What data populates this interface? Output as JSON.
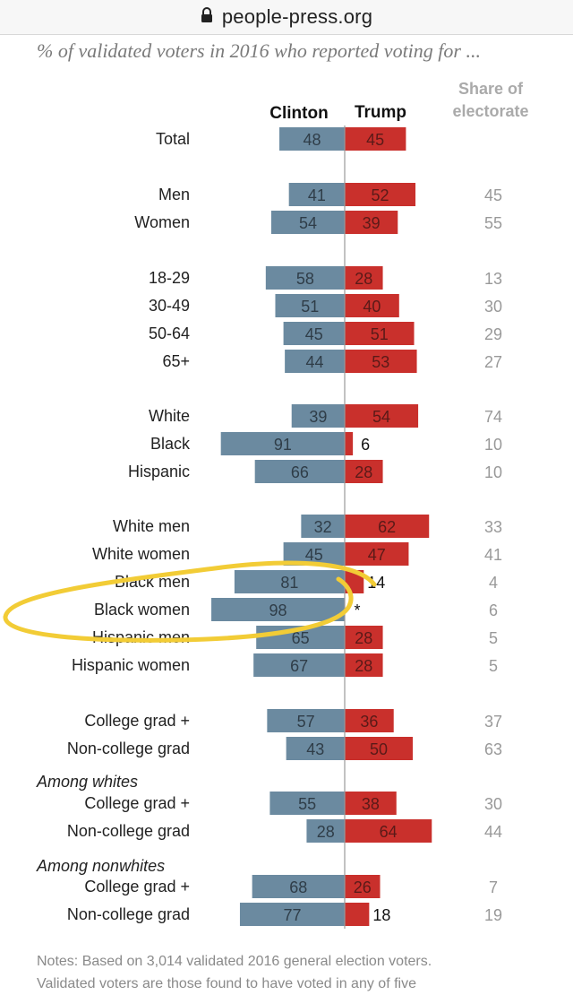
{
  "browser": {
    "url": "people-press.org"
  },
  "subtitle": "% of validated voters in 2016 who reported voting for ...",
  "notes": [
    "Notes: Based on 3,014 validated 2016 general election voters.",
    "Validated voters are those found to have voted in any of five"
  ],
  "colors": {
    "clinton": "#6b8aa0",
    "trump": "#c9302c",
    "share": "#999999",
    "highlight": "#f2cc36"
  },
  "chart_data": {
    "type": "bar",
    "orientation": "horizontal-diverging",
    "title": "% of validated voters in 2016 who reported voting for ...",
    "series": [
      {
        "name": "Clinton",
        "direction": "left"
      },
      {
        "name": "Trump",
        "direction": "right"
      }
    ],
    "share_header": [
      "Share of",
      "electorate"
    ],
    "rows": [
      {
        "label": "Total",
        "clinton": 48,
        "trump": 45,
        "trump_label": "45",
        "share": ""
      },
      {
        "label": "Men",
        "clinton": 41,
        "trump": 52,
        "trump_label": "52",
        "share": "45"
      },
      {
        "label": "Women",
        "clinton": 54,
        "trump": 39,
        "trump_label": "39",
        "share": "55"
      },
      {
        "label": "18-29",
        "clinton": 58,
        "trump": 28,
        "trump_label": "28",
        "share": "13"
      },
      {
        "label": "30-49",
        "clinton": 51,
        "trump": 40,
        "trump_label": "40",
        "share": "30"
      },
      {
        "label": "50-64",
        "clinton": 45,
        "trump": 51,
        "trump_label": "51",
        "share": "29"
      },
      {
        "label": "65+",
        "clinton": 44,
        "trump": 53,
        "trump_label": "53",
        "share": "27"
      },
      {
        "label": "White",
        "clinton": 39,
        "trump": 54,
        "trump_label": "54",
        "share": "74"
      },
      {
        "label": "Black",
        "clinton": 91,
        "trump": 6,
        "trump_label": "6",
        "share": "10"
      },
      {
        "label": "Hispanic",
        "clinton": 66,
        "trump": 28,
        "trump_label": "28",
        "share": "10"
      },
      {
        "label": "White men",
        "clinton": 32,
        "trump": 62,
        "trump_label": "62",
        "share": "33"
      },
      {
        "label": "White women",
        "clinton": 45,
        "trump": 47,
        "trump_label": "47",
        "share": "41"
      },
      {
        "label": "Black men",
        "clinton": 81,
        "trump": 14,
        "trump_label": "14",
        "share": "4"
      },
      {
        "label": "Black women",
        "clinton": 98,
        "trump": 0,
        "trump_label": "*",
        "share": "6"
      },
      {
        "label": "Hispanic men",
        "clinton": 65,
        "trump": 28,
        "trump_label": "28",
        "share": "5"
      },
      {
        "label": "Hispanic women",
        "clinton": 67,
        "trump": 28,
        "trump_label": "28",
        "share": "5"
      },
      {
        "label": "College grad +",
        "clinton": 57,
        "trump": 36,
        "trump_label": "36",
        "share": "37"
      },
      {
        "label": "Non-college grad",
        "clinton": 43,
        "trump": 50,
        "trump_label": "50",
        "share": "63"
      },
      {
        "label": "College grad +",
        "group": "Among whites",
        "clinton": 55,
        "trump": 38,
        "trump_label": "38",
        "share": "30"
      },
      {
        "label": "Non-college grad",
        "clinton": 28,
        "trump": 64,
        "trump_label": "64",
        "share": "44"
      },
      {
        "label": "College grad +",
        "group": "Among nonwhites",
        "clinton": 68,
        "trump": 26,
        "trump_label": "26",
        "share": "7"
      },
      {
        "label": "Non-college grad",
        "clinton": 77,
        "trump": 18,
        "trump_label": "18",
        "share": "19"
      }
    ],
    "annotation": {
      "type": "hand-drawn-ellipse",
      "highlights": [
        "Black men",
        "Black women"
      ]
    }
  }
}
